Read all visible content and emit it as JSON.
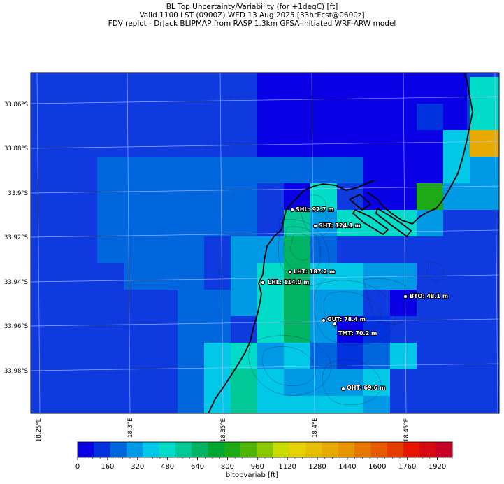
{
  "title": {
    "line1": "BL Top Uncertainty/Variability (for +1degC) [ft]",
    "line2": "Valid 1100 LST (0900Z) WED 13 Aug 2025 [33hrFcst@0600z]",
    "line3": "FDV replot - DrJack BLIPMAP from RASP 1.3km GFSA-Initiated WRF-ARW model"
  },
  "map": {
    "lat_labels": [
      "33.86°S",
      "33.88°S",
      "33.9°S",
      "33.92°S",
      "33.94°S",
      "33.96°S",
      "33.98°S"
    ],
    "lon_labels": [
      "18.25°E",
      "18.3°E",
      "18.35°E",
      "18.4°E",
      "18.45°E"
    ],
    "stations": [
      {
        "id": "SHL",
        "label": "SHL: 97.7 m",
        "value_m": 97.7
      },
      {
        "id": "SHT",
        "label": "SHT: 124.1 m",
        "value_m": 124.1
      },
      {
        "id": "LHT",
        "label": "LHT: 187.2 m",
        "value_m": 187.2
      },
      {
        "id": "LHL",
        "label": "LHL: 114.0 m",
        "value_m": 114.0
      },
      {
        "id": "BTO",
        "label": "BTO: 48.1 m",
        "value_m": 48.1
      },
      {
        "id": "GUT",
        "label": "GUT: 78.4 m",
        "value_m": 78.4
      },
      {
        "id": "TMT",
        "label": "TMT: 70.2 m",
        "value_m": 70.2
      },
      {
        "id": "OHT",
        "label": "OHT: 69.6 m",
        "value_m": 69.6
      }
    ]
  },
  "colorbar": {
    "label": "bltopvariab [ft]",
    "tick_labels": [
      "0",
      "160",
      "320",
      "480",
      "640",
      "800",
      "960",
      "1120",
      "1280",
      "1440",
      "1600",
      "1760",
      "1920"
    ],
    "colors": [
      "#0a00e6",
      "#0033dd",
      "#0066dd",
      "#0099e6",
      "#00c8e6",
      "#00dcc8",
      "#00c896",
      "#00b464",
      "#00a832",
      "#1eaa14",
      "#50b40a",
      "#8cc800",
      "#c8dc00",
      "#e6d200",
      "#e6be00",
      "#e6aa00",
      "#e69600",
      "#e67800",
      "#e65a00",
      "#e63c00",
      "#e61400",
      "#d70a14",
      "#c80028"
    ]
  }
}
